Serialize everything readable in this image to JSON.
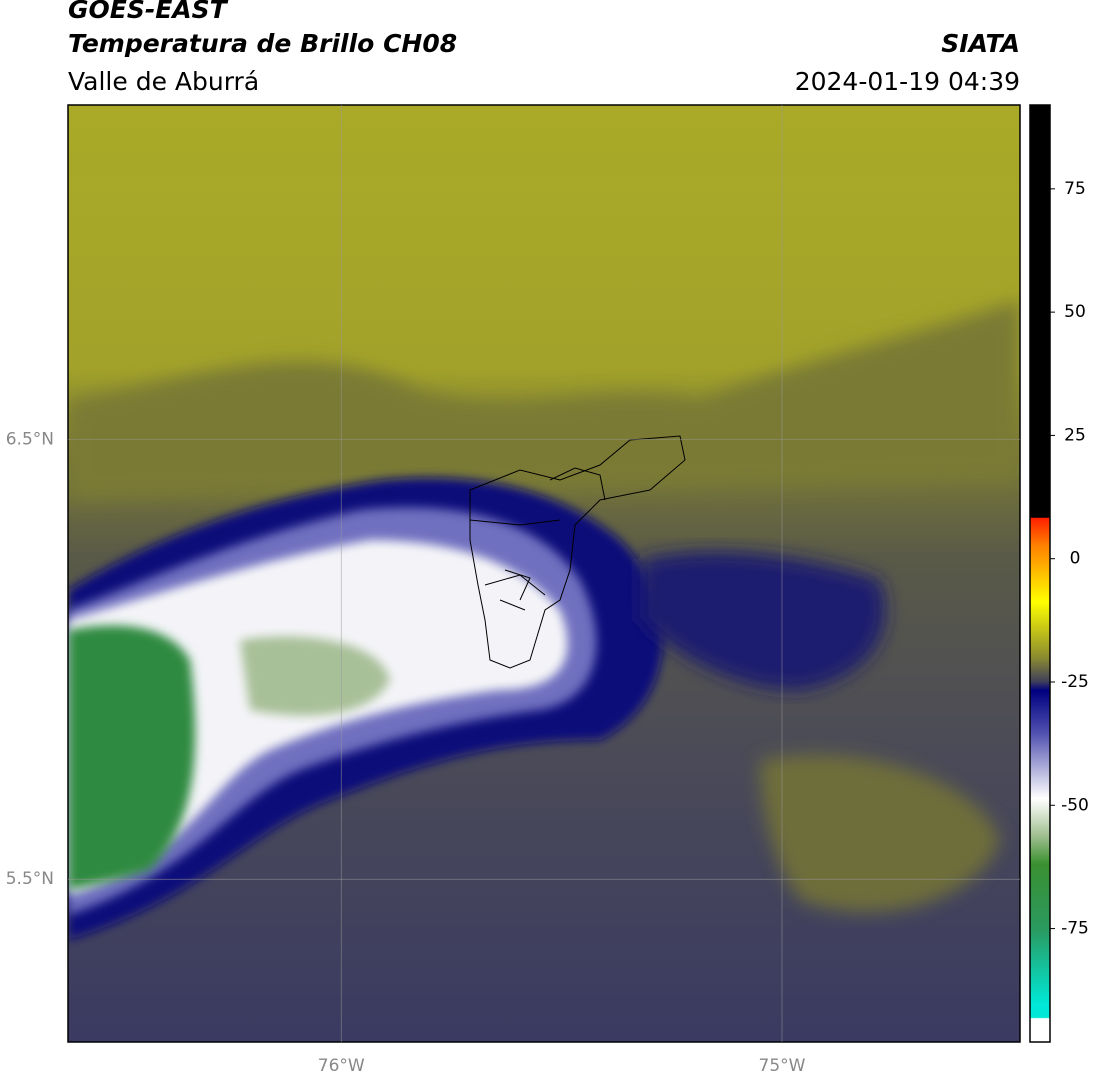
{
  "chart_data": {
    "type": "map",
    "title": "GOES-EAST",
    "subtitle": "Temperatura de Brillo CH08",
    "region": "Valle de Aburrá",
    "source": "SIATA",
    "datetime": "2024-01-19 04:39",
    "xlim": [
      -76.62,
      -74.46
    ],
    "ylim": [
      5.13,
      7.26
    ],
    "xticks": [
      {
        "value": -76,
        "label": "76°W"
      },
      {
        "value": -75,
        "label": "75°W"
      }
    ],
    "yticks": [
      {
        "value": 6.5,
        "label": "6.5°N"
      },
      {
        "value": 5.5,
        "label": "5.5°N"
      }
    ],
    "grid": true,
    "colorbar": {
      "lim": [
        -98,
        92
      ],
      "ticks": [
        75,
        50,
        25,
        0,
        -25,
        -50,
        -75
      ]
    }
  }
}
